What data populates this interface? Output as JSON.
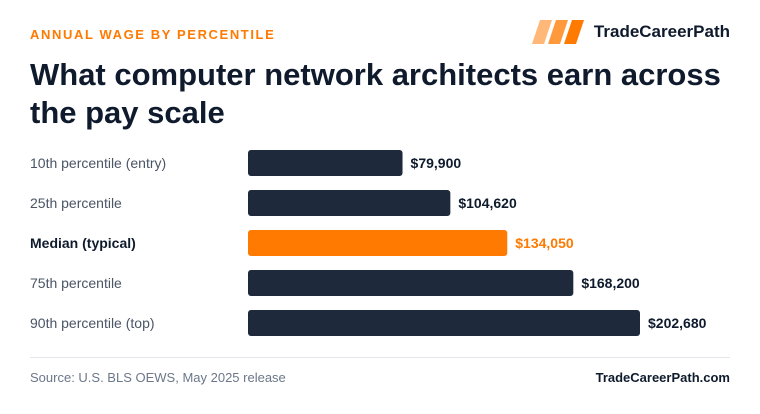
{
  "header": {
    "eyebrow": "ANNUAL WAGE BY PERCENTILE",
    "brand_name": "TradeCareerPath",
    "title": "What computer network architects earn across the pay scale"
  },
  "colors": {
    "bar_default": "#1e293b",
    "bar_highlight": "#ff7a00",
    "label_default": "#4a5565",
    "label_highlight": "#0f1b2d",
    "value_default": "#0f1b2d"
  },
  "chart_data": {
    "type": "bar",
    "orientation": "horizontal",
    "categories": [
      "10th percentile (entry)",
      "25th percentile",
      "Median (typical)",
      "75th percentile",
      "90th percentile (top)"
    ],
    "values": [
      79900,
      104620,
      134050,
      168200,
      202680
    ],
    "value_labels": [
      "$79,900",
      "$104,620",
      "$134,050",
      "$168,200",
      "$202,680"
    ],
    "highlight_index": 2,
    "xlim": [
      0,
      202680
    ],
    "grid": false
  },
  "footer": {
    "source": "Source: U.S. BLS OEWS, May 2025 release",
    "site": "TradeCareerPath.com"
  }
}
